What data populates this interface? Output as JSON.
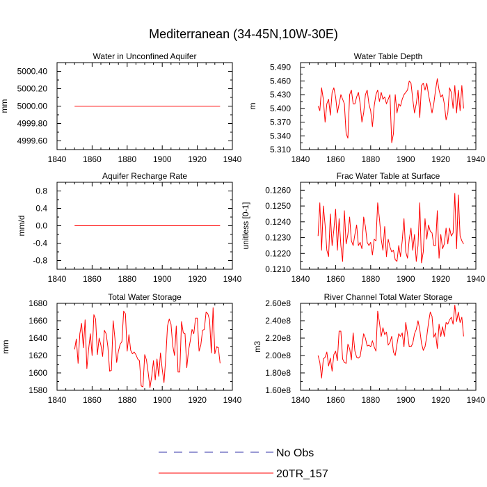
{
  "figure": {
    "title": "Mediterranean (34-45N,10W-30E)"
  },
  "legend": {
    "entries": [
      {
        "label": "No Obs",
        "color": "#3333aa",
        "dash": "dashed"
      },
      {
        "label": "20TR_157",
        "color": "#ff0000",
        "dash": "solid"
      }
    ]
  },
  "chart_data": [
    {
      "type": "line",
      "title": "Water in Unconfined Aquifer",
      "ylabel": "mm",
      "xlabel": "",
      "xlim": [
        1840,
        1940
      ],
      "ylim": [
        4999.5,
        5000.5
      ],
      "xticks": [
        1840,
        1860,
        1880,
        1900,
        1920,
        1940
      ],
      "xtick_labels": [
        "1840",
        "1860",
        "1880",
        "1900",
        "1920",
        "1940"
      ],
      "yticks": [
        4999.6,
        4999.8,
        5000.0,
        5000.2,
        5000.4
      ],
      "ytick_labels": [
        "4999.60",
        "4999.80",
        "5000.00",
        "5000.20",
        "5000.40"
      ],
      "series": [
        {
          "name": "20TR_157",
          "x": [
            1850,
            1933
          ],
          "y": [
            5000.0,
            5000.0
          ]
        }
      ]
    },
    {
      "type": "line",
      "title": "Water Table Depth",
      "ylabel": "m",
      "xlabel": "",
      "xlim": [
        1840,
        1940
      ],
      "ylim": [
        5.31,
        5.5
      ],
      "xticks": [
        1840,
        1860,
        1880,
        1900,
        1920,
        1940
      ],
      "xtick_labels": [
        "1840",
        "1860",
        "1880",
        "1900",
        "1920",
        "1940"
      ],
      "yticks": [
        5.31,
        5.34,
        5.37,
        5.4,
        5.43,
        5.46,
        5.49
      ],
      "ytick_labels": [
        "5.310",
        "5.340",
        "5.370",
        "5.400",
        "5.430",
        "5.460",
        "5.490"
      ],
      "series": [
        {
          "name": "20TR_157",
          "x": [
            1850,
            1851,
            1852,
            1853,
            1854,
            1855,
            1856,
            1857,
            1858,
            1859,
            1860,
            1861,
            1862,
            1863,
            1864,
            1865,
            1866,
            1867,
            1868,
            1869,
            1870,
            1871,
            1872,
            1873,
            1874,
            1875,
            1876,
            1877,
            1878,
            1879,
            1880,
            1881,
            1882,
            1883,
            1884,
            1885,
            1886,
            1887,
            1888,
            1889,
            1890,
            1891,
            1892,
            1893,
            1894,
            1895,
            1896,
            1897,
            1898,
            1899,
            1900,
            1901,
            1902,
            1903,
            1904,
            1905,
            1906,
            1907,
            1908,
            1909,
            1910,
            1911,
            1912,
            1913,
            1914,
            1915,
            1916,
            1917,
            1918,
            1919,
            1920,
            1921,
            1922,
            1923,
            1924,
            1925,
            1926,
            1927,
            1928,
            1929,
            1930,
            1931,
            1932,
            1933
          ],
          "y": [
            5.405,
            5.395,
            5.445,
            5.42,
            5.37,
            5.41,
            5.42,
            5.385,
            5.435,
            5.445,
            5.425,
            5.39,
            5.41,
            5.43,
            5.42,
            5.41,
            5.345,
            5.335,
            5.43,
            5.44,
            5.41,
            5.41,
            5.425,
            5.435,
            5.41,
            5.37,
            5.39,
            5.43,
            5.44,
            5.41,
            5.395,
            5.36,
            5.405,
            5.43,
            5.44,
            5.415,
            5.435,
            5.42,
            5.425,
            5.41,
            5.42,
            5.43,
            5.325,
            5.345,
            5.43,
            5.39,
            5.41,
            5.405,
            5.42,
            5.43,
            5.435,
            5.44,
            5.46,
            5.455,
            5.42,
            5.39,
            5.41,
            5.44,
            5.38,
            5.45,
            5.455,
            5.44,
            5.455,
            5.43,
            5.41,
            5.39,
            5.41,
            5.44,
            5.465,
            5.44,
            5.425,
            5.43,
            5.41,
            5.375,
            5.39,
            5.445,
            5.435,
            5.4,
            5.45,
            5.39,
            5.44,
            5.395,
            5.45,
            5.4
          ]
        }
      ]
    },
    {
      "type": "line",
      "title": "Aquifer Recharge Rate",
      "ylabel": "mm/d",
      "xlabel": "",
      "xlim": [
        1840,
        1940
      ],
      "ylim": [
        -1.0,
        1.0
      ],
      "xticks": [
        1840,
        1860,
        1880,
        1900,
        1920,
        1940
      ],
      "xtick_labels": [
        "1840",
        "1860",
        "1880",
        "1900",
        "1920",
        "1940"
      ],
      "yticks": [
        -0.8,
        -0.4,
        0.0,
        0.4,
        0.8
      ],
      "ytick_labels": [
        "-0.8",
        "-0.4",
        "0.0",
        "0.4",
        "0.8"
      ],
      "series": [
        {
          "name": "20TR_157",
          "x": [
            1850,
            1933
          ],
          "y": [
            0.0,
            0.0
          ]
        }
      ]
    },
    {
      "type": "line",
      "title": "Frac Water Table at Surface",
      "ylabel": "unitless [0-1]",
      "xlabel": "",
      "xlim": [
        1840,
        1940
      ],
      "ylim": [
        0.121,
        0.1265
      ],
      "xticks": [
        1840,
        1860,
        1880,
        1900,
        1920,
        1940
      ],
      "xtick_labels": [
        "1840",
        "1860",
        "1880",
        "1900",
        "1920",
        "1940"
      ],
      "yticks": [
        0.121,
        0.122,
        0.123,
        0.124,
        0.125,
        0.126
      ],
      "ytick_labels": [
        "0.1210",
        "0.1220",
        "0.1230",
        "0.1240",
        "0.1250",
        "0.1260"
      ],
      "series": [
        {
          "name": "20TR_157",
          "x": [
            1850,
            1851,
            1852,
            1853,
            1854,
            1855,
            1856,
            1857,
            1858,
            1859,
            1860,
            1861,
            1862,
            1863,
            1864,
            1865,
            1866,
            1867,
            1868,
            1869,
            1870,
            1871,
            1872,
            1873,
            1874,
            1875,
            1876,
            1877,
            1878,
            1879,
            1880,
            1881,
            1882,
            1883,
            1884,
            1885,
            1886,
            1887,
            1888,
            1889,
            1890,
            1891,
            1892,
            1893,
            1894,
            1895,
            1896,
            1897,
            1898,
            1899,
            1900,
            1901,
            1902,
            1903,
            1904,
            1905,
            1906,
            1907,
            1908,
            1909,
            1910,
            1911,
            1912,
            1913,
            1914,
            1915,
            1916,
            1917,
            1918,
            1919,
            1920,
            1921,
            1922,
            1923,
            1924,
            1925,
            1926,
            1927,
            1928,
            1929,
            1930,
            1931,
            1932,
            1933
          ],
          "y": [
            0.1231,
            0.1252,
            0.1222,
            0.125,
            0.1238,
            0.1222,
            0.1218,
            0.1245,
            0.1225,
            0.1235,
            0.1248,
            0.1222,
            0.1242,
            0.1225,
            0.1215,
            0.1247,
            0.1226,
            0.1232,
            0.1243,
            0.1228,
            0.1225,
            0.1232,
            0.1238,
            0.1225,
            0.1227,
            0.1223,
            0.1243,
            0.1237,
            0.1227,
            0.1225,
            0.1227,
            0.1219,
            0.1229,
            0.1228,
            0.1252,
            0.1242,
            0.1229,
            0.1222,
            0.1237,
            0.1218,
            0.1229,
            0.1224,
            0.1221,
            0.1222,
            0.1216,
            0.1215,
            0.1225,
            0.1218,
            0.1228,
            0.1242,
            0.1221,
            0.1217,
            0.1229,
            0.1236,
            0.1222,
            0.1232,
            0.1215,
            0.1225,
            0.1252,
            0.1214,
            0.1221,
            0.1242,
            0.1229,
            0.1238,
            0.1234,
            0.1233,
            0.1225,
            0.1225,
            0.1247,
            0.1217,
            0.1232,
            0.1223,
            0.1226,
            0.1236,
            0.1226,
            0.1236,
            0.1231,
            0.1233,
            0.1258,
            0.1223,
            0.1257,
            0.1231,
            0.1228,
            0.1226
          ]
        }
      ]
    },
    {
      "type": "line",
      "title": "Total Water Storage",
      "ylabel": "mm",
      "xlabel": "",
      "xlim": [
        1840,
        1940
      ],
      "ylim": [
        1580,
        1680
      ],
      "xticks": [
        1840,
        1860,
        1880,
        1900,
        1920,
        1940
      ],
      "xtick_labels": [
        "1840",
        "1860",
        "1880",
        "1900",
        "1920",
        "1940"
      ],
      "yticks": [
        1580,
        1600,
        1620,
        1640,
        1660,
        1680
      ],
      "ytick_labels": [
        "1580",
        "1600",
        "1620",
        "1640",
        "1660",
        "1680"
      ],
      "series": [
        {
          "name": "20TR_157",
          "x": [
            1850,
            1851,
            1852,
            1853,
            1854,
            1855,
            1856,
            1857,
            1858,
            1859,
            1860,
            1861,
            1862,
            1863,
            1864,
            1865,
            1866,
            1867,
            1868,
            1869,
            1870,
            1871,
            1872,
            1873,
            1874,
            1875,
            1876,
            1877,
            1878,
            1879,
            1880,
            1881,
            1882,
            1883,
            1884,
            1885,
            1886,
            1887,
            1888,
            1889,
            1890,
            1891,
            1892,
            1893,
            1894,
            1895,
            1896,
            1897,
            1898,
            1899,
            1900,
            1901,
            1902,
            1903,
            1904,
            1905,
            1906,
            1907,
            1908,
            1909,
            1910,
            1911,
            1912,
            1913,
            1914,
            1915,
            1916,
            1917,
            1918,
            1919,
            1920,
            1921,
            1922,
            1923,
            1924,
            1925,
            1926,
            1927,
            1928,
            1929,
            1930,
            1931,
            1932,
            1933
          ],
          "y": [
            1627,
            1639,
            1611,
            1645,
            1657,
            1629,
            1661,
            1605,
            1627,
            1645,
            1620,
            1667,
            1662,
            1621,
            1640,
            1632,
            1619,
            1649,
            1645,
            1630,
            1602,
            1603,
            1660,
            1640,
            1612,
            1625,
            1633,
            1636,
            1671,
            1668,
            1625,
            1644,
            1626,
            1622,
            1624,
            1621,
            1616,
            1614,
            1585,
            1584,
            1621,
            1615,
            1600,
            1583,
            1596,
            1614,
            1592,
            1616,
            1596,
            1623,
            1604,
            1589,
            1617,
            1654,
            1662,
            1656,
            1631,
            1620,
            1654,
            1601,
            1601,
            1659,
            1646,
            1645,
            1606,
            1626,
            1637,
            1650,
            1645,
            1663,
            1663,
            1625,
            1632,
            1649,
            1650,
            1670,
            1668,
            1661,
            1623,
            1675,
            1622,
            1630,
            1629,
            1611
          ]
        }
      ]
    },
    {
      "type": "line",
      "title": "River Channel Total Water Storage",
      "ylabel": "m3",
      "xlabel": "",
      "xlim": [
        1840,
        1940
      ],
      "ylim": [
        160000000,
        260000000
      ],
      "xticks": [
        1840,
        1860,
        1880,
        1900,
        1920,
        1940
      ],
      "xtick_labels": [
        "1840",
        "1860",
        "1880",
        "1900",
        "1920",
        "1940"
      ],
      "yticks": [
        160000000,
        180000000,
        200000000,
        220000000,
        240000000,
        260000000
      ],
      "ytick_labels": [
        "1.60e8",
        "1.80e8",
        "2.00e8",
        "2.20e8",
        "2.40e8",
        "2.60e8"
      ],
      "series": [
        {
          "name": "20TR_157",
          "x": [
            1850,
            1851,
            1852,
            1853,
            1854,
            1855,
            1856,
            1857,
            1858,
            1859,
            1860,
            1861,
            1862,
            1863,
            1864,
            1865,
            1866,
            1867,
            1868,
            1869,
            1870,
            1871,
            1872,
            1873,
            1874,
            1875,
            1876,
            1877,
            1878,
            1879,
            1880,
            1881,
            1882,
            1883,
            1884,
            1885,
            1886,
            1887,
            1888,
            1889,
            1890,
            1891,
            1892,
            1893,
            1894,
            1895,
            1896,
            1897,
            1898,
            1899,
            1900,
            1901,
            1902,
            1903,
            1904,
            1905,
            1906,
            1907,
            1908,
            1909,
            1910,
            1911,
            1912,
            1913,
            1914,
            1915,
            1916,
            1917,
            1918,
            1919,
            1920,
            1921,
            1922,
            1923,
            1924,
            1925,
            1926,
            1927,
            1928,
            1929,
            1930,
            1931,
            1932,
            1933
          ],
          "y": [
            200000000,
            192000000,
            174000000,
            196000000,
            198000000,
            204000000,
            188000000,
            197000000,
            182000000,
            201000000,
            205000000,
            194000000,
            228000000,
            228000000,
            196000000,
            192000000,
            191000000,
            213000000,
            208000000,
            195000000,
            226000000,
            205000000,
            198000000,
            197000000,
            199000000,
            212000000,
            225000000,
            220000000,
            211000000,
            212000000,
            210000000,
            217000000,
            210000000,
            205000000,
            251000000,
            238000000,
            222000000,
            232000000,
            224000000,
            227000000,
            212000000,
            215000000,
            222000000,
            204000000,
            200000000,
            213000000,
            225000000,
            222000000,
            226000000,
            210000000,
            238000000,
            225000000,
            210000000,
            210000000,
            214000000,
            225000000,
            230000000,
            240000000,
            230000000,
            214000000,
            206000000,
            210000000,
            222000000,
            238000000,
            250000000,
            245000000,
            221000000,
            226000000,
            208000000,
            236000000,
            222000000,
            233000000,
            222000000,
            238000000,
            236000000,
            241000000,
            244000000,
            236000000,
            258000000,
            239000000,
            250000000,
            238000000,
            244000000,
            222000000
          ]
        }
      ]
    }
  ]
}
